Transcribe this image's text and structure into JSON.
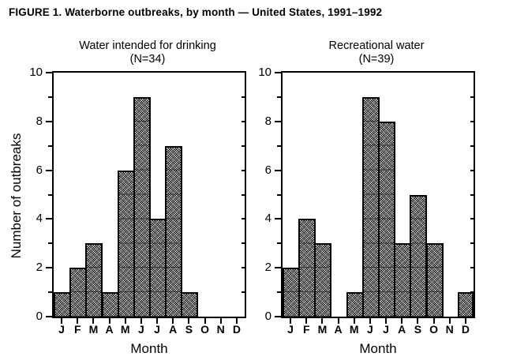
{
  "figure": {
    "title": "FIGURE 1. Waterborne outbreaks, by month — United States, 1991–1992"
  },
  "colors": {
    "background": "#ffffff",
    "ink": "#000000",
    "bar_halftone_gray": "#8a8a8a",
    "bar_border": "#000000"
  },
  "chart_data": [
    {
      "type": "bar",
      "title": "Water intended for drinking",
      "n_label": "(N=34)",
      "categories": [
        "J",
        "F",
        "M",
        "A",
        "M",
        "J",
        "J",
        "A",
        "S",
        "O",
        "N",
        "D"
      ],
      "values": [
        1,
        2,
        3,
        1,
        6,
        9,
        4,
        7,
        1,
        0,
        0,
        0
      ],
      "total_n": 34,
      "xlabel": "Month",
      "ylabel": "Number of outbreaks",
      "ylim": [
        0,
        10
      ],
      "yticks_major": [
        0,
        2,
        4,
        6,
        8,
        10
      ],
      "yticks_minor": [
        1,
        3,
        5,
        7,
        9
      ],
      "grid": false,
      "legend": false,
      "bar_style": "adjacent-histogram, gray halftone fill, black outline"
    },
    {
      "type": "bar",
      "title": "Recreational water",
      "n_label": "(N=39)",
      "categories": [
        "J",
        "F",
        "M",
        "A",
        "M",
        "J",
        "J",
        "A",
        "S",
        "O",
        "N",
        "D"
      ],
      "values": [
        2,
        4,
        3,
        0,
        1,
        9,
        8,
        3,
        5,
        3,
        0,
        1
      ],
      "total_n": 39,
      "xlabel": "Month",
      "ylabel": "",
      "ylim": [
        0,
        10
      ],
      "yticks_major": [
        0,
        2,
        4,
        6,
        8,
        10
      ],
      "yticks_minor": [
        1,
        3,
        5,
        7,
        9
      ],
      "grid": false,
      "legend": false,
      "bar_style": "adjacent-histogram, gray halftone fill, black outline"
    }
  ]
}
